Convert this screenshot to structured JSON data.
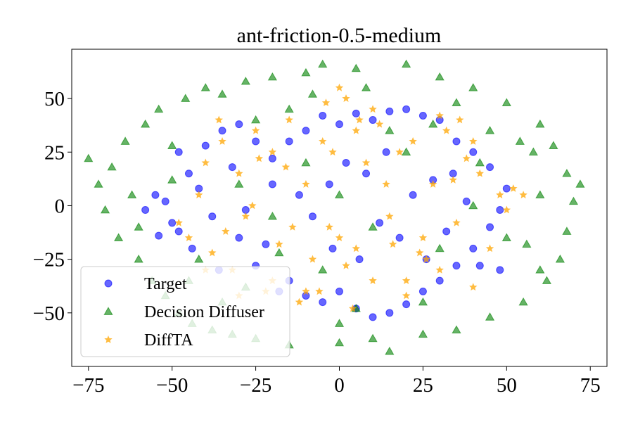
{
  "chart_data": {
    "type": "scatter",
    "title": "ant-friction-0.5-medium",
    "xlabel": "",
    "ylabel": "",
    "xlim": [
      -80,
      80
    ],
    "ylim": [
      -75,
      73
    ],
    "x_ticks": [
      -75,
      -50,
      -25,
      0,
      25,
      50,
      75
    ],
    "x_tick_labels": [
      "−75",
      "−50",
      "−25",
      "0",
      "25",
      "50",
      "75"
    ],
    "y_ticks": [
      -50,
      -25,
      0,
      25,
      50
    ],
    "y_tick_labels": [
      "−50",
      "−25",
      "0",
      "25",
      "50"
    ],
    "grid": false,
    "legend_position": "lower-left",
    "series": [
      {
        "name": "Target",
        "marker": "circle",
        "color": "#0000ff",
        "points": [
          [
            -55,
            5
          ],
          [
            -50,
            -8
          ],
          [
            -52,
            2
          ],
          [
            -48,
            -12
          ],
          [
            -45,
            15
          ],
          [
            -40,
            28
          ],
          [
            -35,
            35
          ],
          [
            -30,
            38
          ],
          [
            -25,
            30
          ],
          [
            -20,
            22
          ],
          [
            -38,
            -5
          ],
          [
            -42,
            8
          ],
          [
            -30,
            -15
          ],
          [
            -25,
            -28
          ],
          [
            -18,
            -40
          ],
          [
            -15,
            -35
          ],
          [
            -10,
            -42
          ],
          [
            -5,
            -45
          ],
          [
            0,
            -40
          ],
          [
            5,
            -48
          ],
          [
            10,
            -52
          ],
          [
            15,
            -50
          ],
          [
            20,
            -46
          ],
          [
            25,
            -40
          ],
          [
            30,
            -35
          ],
          [
            35,
            -28
          ],
          [
            40,
            -20
          ],
          [
            45,
            -10
          ],
          [
            48,
            -2
          ],
          [
            50,
            8
          ],
          [
            45,
            18
          ],
          [
            40,
            25
          ],
          [
            35,
            30
          ],
          [
            30,
            40
          ],
          [
            25,
            42
          ],
          [
            20,
            45
          ],
          [
            15,
            44
          ],
          [
            10,
            40
          ],
          [
            5,
            43
          ],
          [
            0,
            38
          ],
          [
            -5,
            42
          ],
          [
            -10,
            35
          ],
          [
            -15,
            30
          ],
          [
            -20,
            10
          ],
          [
            -12,
            5
          ],
          [
            -8,
            -5
          ],
          [
            -3,
            10
          ],
          [
            2,
            20
          ],
          [
            8,
            15
          ],
          [
            12,
            -8
          ],
          [
            18,
            -15
          ],
          [
            22,
            5
          ],
          [
            28,
            12
          ],
          [
            32,
            -12
          ],
          [
            38,
            2
          ],
          [
            42,
            -28
          ],
          [
            48,
            -30
          ],
          [
            -32,
            18
          ],
          [
            -28,
            -2
          ],
          [
            -22,
            -18
          ],
          [
            -44,
            -20
          ],
          [
            -36,
            -30
          ],
          [
            -48,
            25
          ],
          [
            -58,
            -2
          ],
          [
            -54,
            -14
          ],
          [
            6,
            -25
          ],
          [
            14,
            25
          ],
          [
            -2,
            -20
          ],
          [
            26,
            -25
          ],
          [
            34,
            15
          ]
        ]
      },
      {
        "name": "Decision Diffuser",
        "marker": "triangle",
        "color": "#008000",
        "points": [
          [
            -75,
            22
          ],
          [
            -72,
            10
          ],
          [
            -70,
            -2
          ],
          [
            -68,
            18
          ],
          [
            -66,
            -15
          ],
          [
            -64,
            30
          ],
          [
            -62,
            5
          ],
          [
            -60,
            -25
          ],
          [
            -58,
            38
          ],
          [
            -56,
            -35
          ],
          [
            -54,
            45
          ],
          [
            -52,
            -42
          ],
          [
            -50,
            28
          ],
          [
            -48,
            -50
          ],
          [
            -46,
            50
          ],
          [
            -44,
            -55
          ],
          [
            -40,
            55
          ],
          [
            -38,
            -58
          ],
          [
            -35,
            52
          ],
          [
            -32,
            -60
          ],
          [
            -28,
            58
          ],
          [
            -25,
            -62
          ],
          [
            -20,
            60
          ],
          [
            -15,
            -65
          ],
          [
            -10,
            62
          ],
          [
            -5,
            66
          ],
          [
            0,
            -64
          ],
          [
            5,
            64
          ],
          [
            10,
            -62
          ],
          [
            15,
            -68
          ],
          [
            20,
            66
          ],
          [
            25,
            -60
          ],
          [
            30,
            60
          ],
          [
            35,
            -58
          ],
          [
            40,
            55
          ],
          [
            45,
            -52
          ],
          [
            50,
            48
          ],
          [
            55,
            -45
          ],
          [
            60,
            38
          ],
          [
            62,
            -35
          ],
          [
            64,
            28
          ],
          [
            66,
            -25
          ],
          [
            68,
            15
          ],
          [
            70,
            2
          ],
          [
            72,
            10
          ],
          [
            68,
            -12
          ],
          [
            60,
            -30
          ],
          [
            58,
            25
          ],
          [
            56,
            -18
          ],
          [
            54,
            30
          ],
          [
            -30,
            10
          ],
          [
            -20,
            -5
          ],
          [
            -10,
            20
          ],
          [
            0,
            5
          ],
          [
            10,
            -10
          ],
          [
            20,
            25
          ],
          [
            30,
            -20
          ],
          [
            40,
            0
          ],
          [
            -5,
            -30
          ],
          [
            15,
            35
          ],
          [
            -25,
            40
          ],
          [
            25,
            -45
          ],
          [
            -45,
            -35
          ],
          [
            45,
            35
          ],
          [
            -60,
            -10
          ],
          [
            60,
            5
          ],
          [
            -35,
            -45
          ],
          [
            35,
            48
          ],
          [
            -15,
            45
          ],
          [
            5,
            -48
          ],
          [
            -50,
            12
          ],
          [
            50,
            -15
          ],
          [
            -8,
            52
          ],
          [
            8,
            55
          ],
          [
            -42,
            -25
          ],
          [
            42,
            20
          ],
          [
            -28,
            -38
          ],
          [
            28,
            38
          ],
          [
            0,
            -55
          ],
          [
            -18,
            -22
          ]
        ]
      },
      {
        "name": "DiffTA",
        "marker": "star",
        "color": "#ffa500",
        "points": [
          [
            -45,
            -15
          ],
          [
            -42,
            5
          ],
          [
            -40,
            20
          ],
          [
            -38,
            -22
          ],
          [
            -35,
            30
          ],
          [
            -32,
            -30
          ],
          [
            -30,
            15
          ],
          [
            -28,
            -5
          ],
          [
            -25,
            35
          ],
          [
            -22,
            -40
          ],
          [
            -20,
            25
          ],
          [
            -18,
            -18
          ],
          [
            -15,
            40
          ],
          [
            -12,
            -45
          ],
          [
            -10,
            10
          ],
          [
            -8,
            -25
          ],
          [
            -5,
            30
          ],
          [
            -3,
            -10
          ],
          [
            0,
            55
          ],
          [
            2,
            50
          ],
          [
            5,
            -20
          ],
          [
            8,
            20
          ],
          [
            10,
            -35
          ],
          [
            12,
            38
          ],
          [
            15,
            -5
          ],
          [
            18,
            25
          ],
          [
            20,
            -42
          ],
          [
            22,
            30
          ],
          [
            25,
            -15
          ],
          [
            28,
            10
          ],
          [
            30,
            -30
          ],
          [
            32,
            35
          ],
          [
            35,
            -8
          ],
          [
            38,
            22
          ],
          [
            40,
            -38
          ],
          [
            42,
            15
          ],
          [
            45,
            -20
          ],
          [
            48,
            5
          ],
          [
            50,
            -2
          ],
          [
            52,
            8
          ],
          [
            55,
            5
          ],
          [
            -48,
            -8
          ],
          [
            -36,
            40
          ],
          [
            36,
            40
          ],
          [
            -10,
            -40
          ],
          [
            10,
            45
          ],
          [
            -20,
            -35
          ],
          [
            20,
            -35
          ],
          [
            0,
            -15
          ],
          [
            5,
            35
          ],
          [
            -26,
            0
          ],
          [
            26,
            -25
          ],
          [
            -16,
            18
          ],
          [
            16,
            -18
          ],
          [
            -6,
            -40
          ],
          [
            6,
            40
          ],
          [
            -34,
            -12
          ],
          [
            34,
            12
          ],
          [
            -2,
            25
          ],
          [
            2,
            -28
          ],
          [
            -30,
            -42
          ],
          [
            30,
            42
          ],
          [
            -14,
            -10
          ],
          [
            14,
            10
          ],
          [
            -40,
            -30
          ],
          [
            40,
            30
          ],
          [
            -24,
            22
          ],
          [
            24,
            -22
          ],
          [
            -4,
            48
          ],
          [
            4,
            -48
          ]
        ]
      }
    ],
    "legend": [
      {
        "label": "Target",
        "marker": "circle",
        "color": "#0000ff"
      },
      {
        "label": "Decision Diffuser",
        "marker": "triangle",
        "color": "#008000"
      },
      {
        "label": "DiffTA",
        "marker": "star",
        "color": "#ffa500"
      }
    ]
  }
}
